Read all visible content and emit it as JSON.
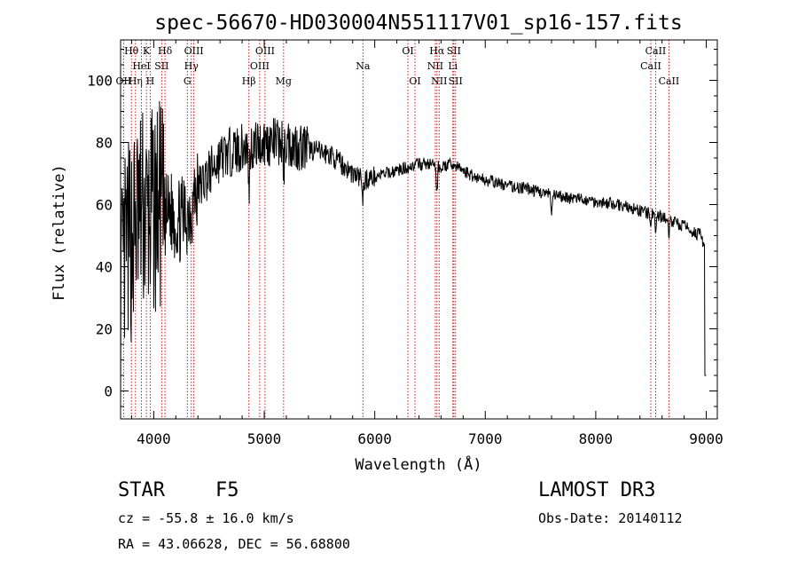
{
  "chart_data": {
    "type": "line",
    "title": "spec-56670-HD030004N551117V01_sp16-157.fits",
    "xlabel": "Wavelength (Å)",
    "ylabel": "Flux (relative)",
    "xlim": [
      3700,
      9100
    ],
    "ylim": [
      -9,
      113
    ],
    "xticks": [
      4000,
      5000,
      6000,
      7000,
      8000,
      9000
    ],
    "xtick_labels": [
      "4000",
      "5000",
      "6000",
      "7000",
      "8000",
      "9000"
    ],
    "yticks": [
      0,
      20,
      40,
      60,
      80,
      100
    ],
    "ytick_labels": [
      "0",
      "20",
      "40",
      "60",
      "80",
      "100"
    ],
    "line_color": "#000000",
    "marker_color": "#cc0000",
    "continuum": [
      [
        3700,
        30
      ],
      [
        3750,
        45
      ],
      [
        3800,
        50
      ],
      [
        3850,
        55
      ],
      [
        3900,
        58
      ],
      [
        3950,
        55
      ],
      [
        4000,
        58
      ],
      [
        4050,
        60
      ],
      [
        4100,
        55
      ],
      [
        4150,
        58
      ],
      [
        4200,
        55
      ],
      [
        4250,
        55
      ],
      [
        4300,
        57
      ],
      [
        4350,
        60
      ],
      [
        4400,
        65
      ],
      [
        4500,
        70
      ],
      [
        4600,
        75
      ],
      [
        4700,
        77
      ],
      [
        4800,
        78
      ],
      [
        4900,
        79
      ],
      [
        5000,
        80
      ],
      [
        5100,
        80
      ],
      [
        5200,
        80
      ],
      [
        5300,
        79
      ],
      [
        5400,
        78
      ],
      [
        5500,
        77
      ],
      [
        5600,
        76
      ],
      [
        5700,
        73
      ],
      [
        5800,
        70
      ],
      [
        5900,
        68
      ],
      [
        6000,
        69
      ],
      [
        6100,
        70
      ],
      [
        6200,
        71
      ],
      [
        6300,
        72
      ],
      [
        6400,
        73
      ],
      [
        6500,
        73
      ],
      [
        6600,
        72
      ],
      [
        6700,
        73
      ],
      [
        6800,
        71
      ],
      [
        6900,
        69
      ],
      [
        7000,
        68
      ],
      [
        7200,
        66
      ],
      [
        7400,
        65
      ],
      [
        7600,
        63
      ],
      [
        7800,
        62
      ],
      [
        8000,
        61
      ],
      [
        8200,
        60
      ],
      [
        8400,
        58
      ],
      [
        8600,
        56
      ],
      [
        8800,
        53
      ],
      [
        8950,
        50
      ],
      [
        9000,
        45
      ]
    ],
    "absorption_lines": [
      {
        "label": "Hα",
        "wavelength": 6563,
        "depth": 10
      },
      {
        "label": "Hβ",
        "wavelength": 4861,
        "depth": 15
      },
      {
        "label": "Na",
        "wavelength": 5893,
        "depth": 8
      },
      {
        "label": "Mg",
        "wavelength": 5175,
        "depth": 10
      },
      {
        "label": "CaII",
        "wavelength": 8498,
        "depth": 6
      },
      {
        "label": "CaII",
        "wavelength": 8542,
        "depth": 6
      },
      {
        "label": "CaII",
        "wavelength": 8662,
        "depth": 6
      },
      {
        "label": "",
        "wavelength": 7600,
        "depth": 8
      }
    ],
    "line_markers": [
      {
        "label": "OII",
        "wavelength": 3727,
        "row": 2
      },
      {
        "label": "Hθ",
        "wavelength": 3798,
        "row": 0
      },
      {
        "label": "Hη",
        "wavelength": 3835,
        "row": 2
      },
      {
        "label": "K",
        "wavelength": 3934,
        "row": 0
      },
      {
        "label": "HeI",
        "wavelength": 3889,
        "row": 1
      },
      {
        "label": "H",
        "wavelength": 3968,
        "row": 2
      },
      {
        "label": "SII",
        "wavelength": 4072,
        "row": 1
      },
      {
        "label": "Hδ",
        "wavelength": 4102,
        "row": 0
      },
      {
        "label": "G",
        "wavelength": 4304,
        "row": 2
      },
      {
        "label": "Hγ",
        "wavelength": 4340,
        "row": 1
      },
      {
        "label": "OIII",
        "wavelength": 4363,
        "row": 0
      },
      {
        "label": "Hβ",
        "wavelength": 4861,
        "row": 2
      },
      {
        "label": "OIII",
        "wavelength": 4959,
        "row": 1
      },
      {
        "label": "OIII",
        "wavelength": 5007,
        "row": 0
      },
      {
        "label": "Mg",
        "wavelength": 5175,
        "row": 2
      },
      {
        "label": "Na",
        "wavelength": 5893,
        "row": 1
      },
      {
        "label": "OI",
        "wavelength": 6300,
        "row": 0
      },
      {
        "label": "OI",
        "wavelength": 6364,
        "row": 2
      },
      {
        "label": "NII",
        "wavelength": 6548,
        "row": 1
      },
      {
        "label": "Hα",
        "wavelength": 6563,
        "row": 0
      },
      {
        "label": "NII",
        "wavelength": 6583,
        "row": 2
      },
      {
        "label": "Li",
        "wavelength": 6707,
        "row": 1
      },
      {
        "label": "SII",
        "wavelength": 6716,
        "row": 0
      },
      {
        "label": "SII",
        "wavelength": 6731,
        "row": 2
      },
      {
        "label": "CaII",
        "wavelength": 8498,
        "row": 1
      },
      {
        "label": "CaII",
        "wavelength": 8542,
        "row": 0
      },
      {
        "label": "CaII",
        "wavelength": 8662,
        "row": 2
      }
    ]
  },
  "info": {
    "object_type": "STAR",
    "subclass": "F5",
    "survey": "LAMOST DR3",
    "redshift": "cz = -55.8 ± 16.0 km/s",
    "obs_date": "Obs-Date: 20140112",
    "coords": "RA =  43.06628, DEC =  56.68800"
  }
}
